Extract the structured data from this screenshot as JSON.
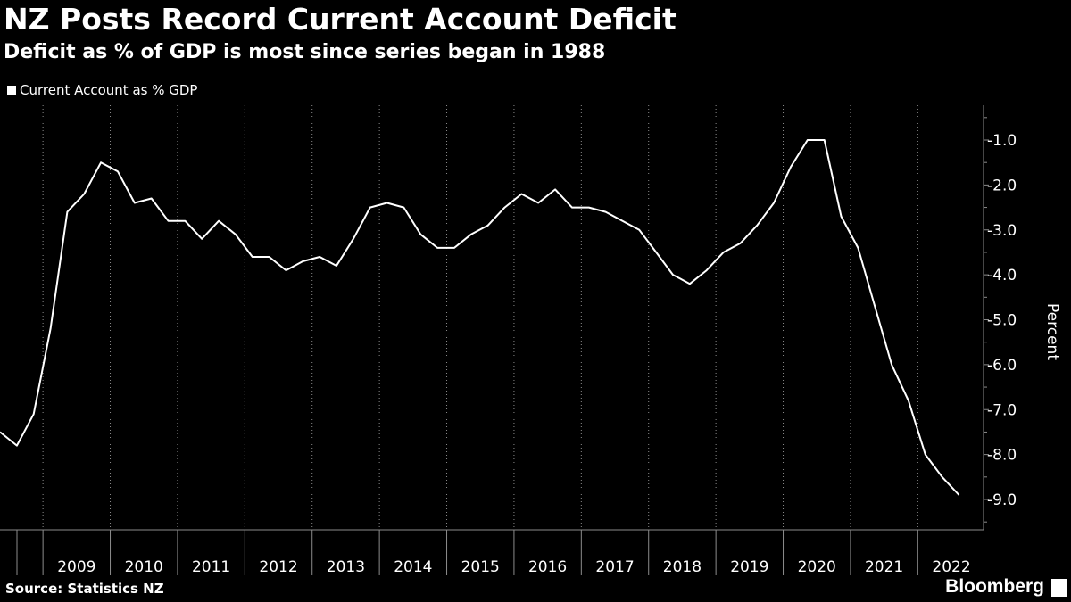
{
  "header": {
    "title": "NZ Posts Record Current Account Deficit",
    "subtitle": "Deficit as % of GDP is most since series began in 1988"
  },
  "footer": {
    "source": "Source: Statistics NZ",
    "brand": "Bloomberg"
  },
  "colors": {
    "background": "#000000",
    "line": "#ffffff",
    "grid": "#8c8c8c"
  },
  "chart_data": {
    "type": "line",
    "title": "NZ Posts Record Current Account Deficit",
    "subtitle": "Deficit as % of GDP is most since series began in 1988",
    "ylabel": "Percent",
    "xlabel": "",
    "legend": "top-left",
    "grid": true,
    "ylim": [
      -9.7,
      -0.2
    ],
    "y_ticks": [
      -1.0,
      -2.0,
      -3.0,
      -4.0,
      -5.0,
      -6.0,
      -7.0,
      -8.0,
      -9.0
    ],
    "y_tick_labels": [
      "-1.0",
      "-2.0",
      "-3.0",
      "-4.0",
      "-5.0",
      "-6.0",
      "-7.0",
      "-8.0",
      "-9.0"
    ],
    "x_labels": [
      "2009",
      "2010",
      "2011",
      "2012",
      "2013",
      "2014",
      "2015",
      "2016",
      "2017",
      "2018",
      "2019",
      "2020",
      "2021",
      "2022"
    ],
    "series": [
      {
        "name": "Current Account as % GDP",
        "x": [
          "2008-Q2",
          "2008-Q3",
          "2008-Q4",
          "2009-Q1",
          "2009-Q2",
          "2009-Q3",
          "2009-Q4",
          "2010-Q1",
          "2010-Q2",
          "2010-Q3",
          "2010-Q4",
          "2011-Q1",
          "2011-Q2",
          "2011-Q3",
          "2011-Q4",
          "2012-Q1",
          "2012-Q2",
          "2012-Q3",
          "2012-Q4",
          "2013-Q1",
          "2013-Q2",
          "2013-Q3",
          "2013-Q4",
          "2014-Q1",
          "2014-Q2",
          "2014-Q3",
          "2014-Q4",
          "2015-Q1",
          "2015-Q2",
          "2015-Q3",
          "2015-Q4",
          "2016-Q1",
          "2016-Q2",
          "2016-Q3",
          "2016-Q4",
          "2017-Q1",
          "2017-Q2",
          "2017-Q3",
          "2017-Q4",
          "2018-Q1",
          "2018-Q2",
          "2018-Q3",
          "2018-Q4",
          "2019-Q1",
          "2019-Q2",
          "2019-Q3",
          "2019-Q4",
          "2020-Q1",
          "2020-Q2",
          "2020-Q3",
          "2020-Q4",
          "2021-Q1",
          "2021-Q2",
          "2021-Q3",
          "2021-Q4",
          "2022-Q1",
          "2022-Q2",
          "2022-Q3"
        ],
        "values": [
          -7.5,
          -7.8,
          -7.1,
          -5.2,
          -2.6,
          -2.2,
          -1.5,
          -1.7,
          -2.4,
          -2.3,
          -2.8,
          -2.8,
          -3.2,
          -2.8,
          -3.1,
          -3.6,
          -3.6,
          -3.9,
          -3.7,
          -3.6,
          -3.8,
          -3.2,
          -2.5,
          -2.4,
          -2.5,
          -3.1,
          -3.4,
          -3.4,
          -3.1,
          -2.9,
          -2.5,
          -2.2,
          -2.4,
          -2.1,
          -2.5,
          -2.5,
          -2.6,
          -2.8,
          -3.0,
          -3.5,
          -4.0,
          -4.2,
          -3.9,
          -3.5,
          -3.3,
          -2.9,
          -2.4,
          -1.6,
          -1.0,
          -1.0,
          -2.7,
          -3.4,
          -4.7,
          -6.0,
          -6.8,
          -8.0,
          -8.5,
          -8.9
        ]
      }
    ]
  }
}
